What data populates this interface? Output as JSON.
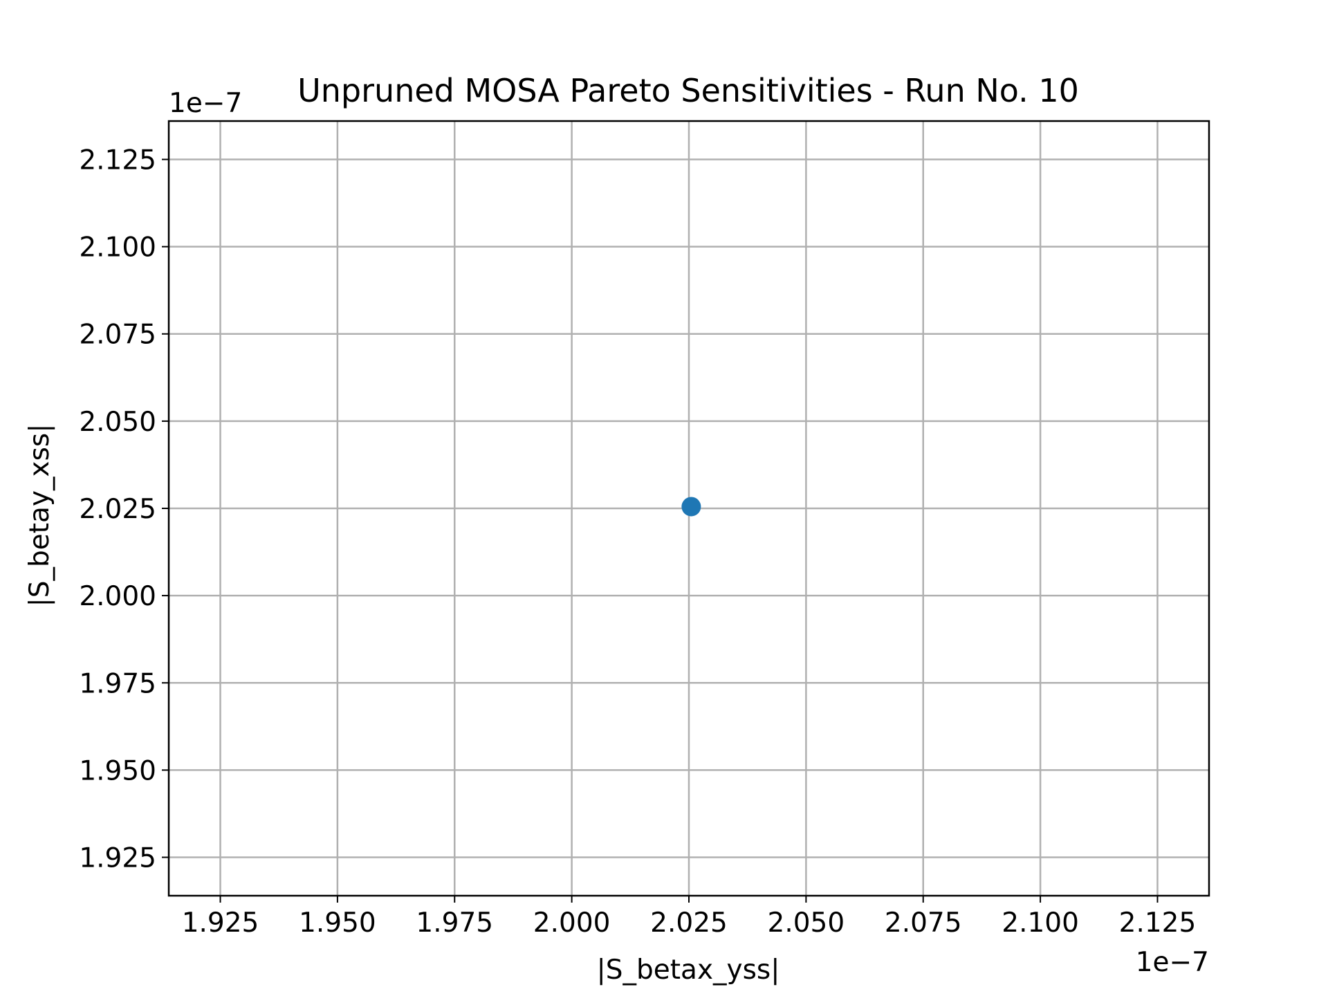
{
  "chart_data": {
    "type": "scatter",
    "title": "Unpruned MOSA Pareto Sensitivities - Run No. 10",
    "xlabel": "|S_betax_yss|",
    "ylabel": "|S_betay_xss|",
    "x_offset_label": "1e−7",
    "y_offset_label": "1e−7",
    "xlim": [
      1.914,
      2.136
    ],
    "ylim": [
      1.914,
      2.136
    ],
    "x_ticks": [
      1.925,
      1.95,
      1.975,
      2.0,
      2.025,
      2.05,
      2.075,
      2.1,
      2.125
    ],
    "x_tick_labels": [
      "1.925",
      "1.950",
      "1.975",
      "2.000",
      "2.025",
      "2.050",
      "2.075",
      "2.100",
      "2.125"
    ],
    "y_ticks": [
      1.925,
      1.95,
      1.975,
      2.0,
      2.025,
      2.05,
      2.075,
      2.1,
      2.125
    ],
    "y_tick_labels": [
      "1.925",
      "1.950",
      "1.975",
      "2.000",
      "2.025",
      "2.050",
      "2.075",
      "2.100",
      "2.125"
    ],
    "grid": true,
    "series": [
      {
        "points": [
          [
            2.0255,
            2.0255
          ]
        ],
        "color": "#1f77b4"
      }
    ]
  }
}
